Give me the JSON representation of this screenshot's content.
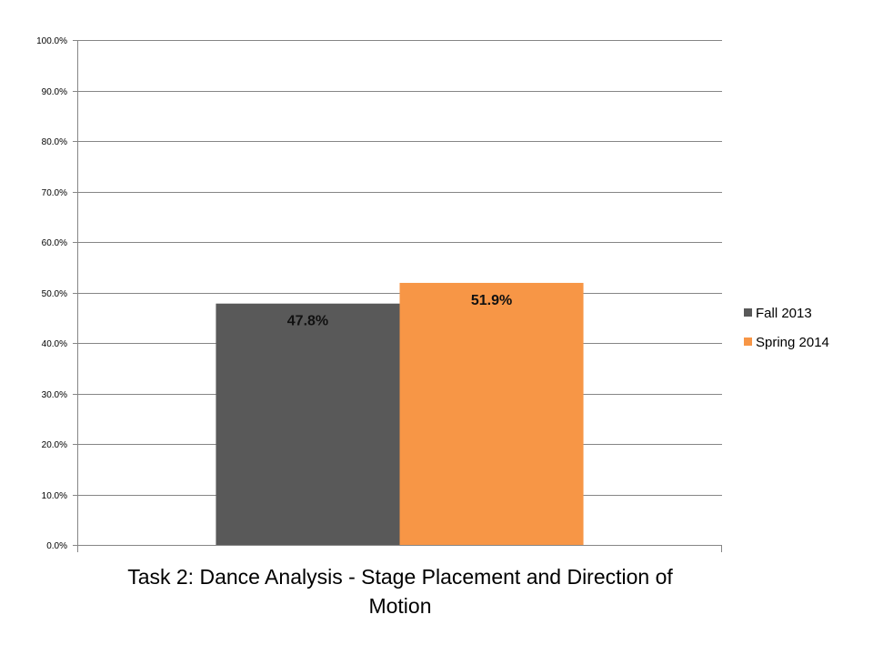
{
  "chart_data": {
    "type": "bar",
    "title_lines": [
      "Task 2: Dance Analysis - Stage Placement and Direction of",
      "Motion"
    ],
    "categories": [
      ""
    ],
    "series": [
      {
        "name": "Fall 2013",
        "values": [
          47.8
        ],
        "color": "#595959",
        "data_label": "47.8%"
      },
      {
        "name": "Spring 2014",
        "values": [
          51.9
        ],
        "color": "#F79646",
        "data_label": "51.9%"
      }
    ],
    "ylim": [
      0,
      100
    ],
    "yticks": [
      "0.0%",
      "10.0%",
      "20.0%",
      "30.0%",
      "40.0%",
      "50.0%",
      "60.0%",
      "70.0%",
      "80.0%",
      "90.0%",
      "100.0%"
    ],
    "grid": true,
    "legend_position": "right"
  }
}
